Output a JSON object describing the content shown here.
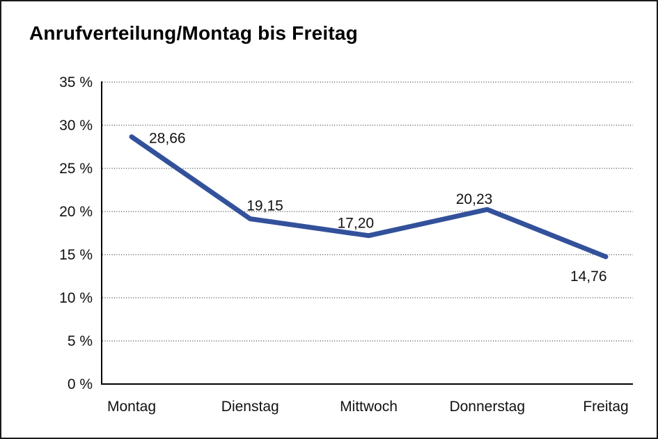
{
  "title": "Anrufverteilung/Montag bis Freitag",
  "chart_data": {
    "type": "line",
    "title": "Anrufverteilung/Montag bis Freitag",
    "categories": [
      "Montag",
      "Dienstag",
      "Mittwoch",
      "Donnerstag",
      "Freitag"
    ],
    "values": [
      28.66,
      19.15,
      17.2,
      20.23,
      14.76
    ],
    "point_labels": [
      "28,66",
      "19,15",
      "17,20",
      "20,23",
      "14,76"
    ],
    "xlabel": "",
    "ylabel": "",
    "ylim": [
      0,
      35
    ],
    "ytick_step": 5,
    "ytick_labels": [
      "0 %",
      "5 %",
      "10 %",
      "15 %",
      "20 %",
      "25 %",
      "30 %",
      "35 %"
    ],
    "grid": "horizontal-dotted",
    "legend": "none"
  },
  "colors": {
    "line": "#33519B",
    "background": "#ffffff",
    "frame_border": "#1a1a1a",
    "axis": "#000000",
    "grid": "#3a3a3a",
    "tick_text": "#111111",
    "point_label_text": "#111111"
  }
}
